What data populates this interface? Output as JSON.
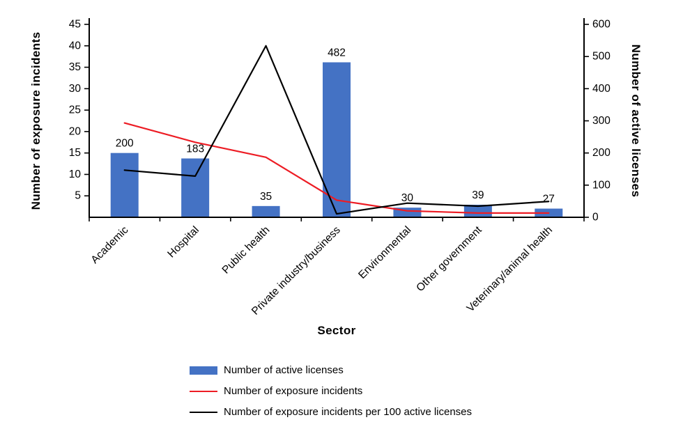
{
  "chart_data": {
    "type": "bar",
    "subtype": "combo-bar-line",
    "title": "",
    "xlabel": "Sector",
    "categories": [
      "Academic",
      "Hospital",
      "Public health",
      "Private industry/business",
      "Environmental",
      "Other government",
      "Veterinary/animal health"
    ],
    "left_axis": {
      "label": "Number of exposure incidents",
      "min": 0,
      "max": 45,
      "step": 5,
      "ticks": [
        45,
        40,
        35,
        30,
        25,
        20,
        15,
        10,
        5
      ]
    },
    "right_axis": {
      "label": "Number of active licenses",
      "min": 0,
      "max": 600,
      "step": 100,
      "ticks": [
        600,
        500,
        400,
        300,
        200,
        100,
        0
      ]
    },
    "series": [
      {
        "name": "Number of active licenses",
        "type": "bar",
        "axis": "right",
        "color": "#4472c4",
        "values": [
          200,
          183,
          35,
          482,
          30,
          39,
          27
        ],
        "data_labels": [
          "200",
          "183",
          "35",
          "482",
          "30",
          "39",
          "27"
        ]
      },
      {
        "name": "Number of exposure incidents",
        "type": "line",
        "axis": "left",
        "color": "#ed1c24",
        "values": [
          22,
          17.5,
          14,
          4,
          1.5,
          1,
          1
        ]
      },
      {
        "name": "Number of exposure incidents per 100 active licenses",
        "type": "line",
        "axis": "left",
        "color": "#000000",
        "values": [
          11,
          9.6,
          40,
          0.8,
          3.3,
          2.6,
          3.7
        ]
      }
    ],
    "legend_position": "bottom-left",
    "grid": false
  }
}
